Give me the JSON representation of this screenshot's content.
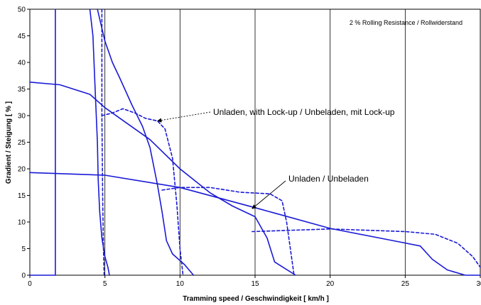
{
  "chart_data": {
    "type": "line",
    "xlabel": "Tramming speed / Geschwindigkeit   [ km/h ]",
    "ylabel": "Gradient / Steigung   [ % ]",
    "xlim": [
      0,
      30
    ],
    "ylim": [
      0,
      50
    ],
    "x_ticks": [
      "0",
      "5",
      "10",
      "15",
      "20",
      "25",
      "30"
    ],
    "y_ticks": [
      "0",
      "5",
      "10",
      "15",
      "20",
      "25",
      "30",
      "35",
      "40",
      "45",
      "50"
    ],
    "grid": "vertical",
    "note": "2 % Rolling Resistance / Rollwiderstand",
    "annotations": [
      {
        "text": "Unladen, with Lock-up / Unbeladen, mit Lock-up",
        "arrow_to": [
          8.5,
          29.0
        ]
      },
      {
        "text": "Unladen / Unbeladen",
        "arrow_to": [
          14.8,
          12.5
        ]
      }
    ],
    "series": [
      {
        "style": "solid",
        "points": [
          [
            0,
            0
          ],
          [
            1.7,
            0
          ],
          [
            1.7,
            50
          ]
        ]
      },
      {
        "style": "solid",
        "points": [
          [
            4.0,
            50
          ],
          [
            4.2,
            45
          ],
          [
            4.35,
            35
          ],
          [
            4.5,
            25
          ],
          [
            4.55,
            18
          ],
          [
            4.65,
            12
          ],
          [
            4.8,
            7
          ],
          [
            5.0,
            3.5
          ],
          [
            5.2,
            1.5
          ],
          [
            5.3,
            0
          ]
        ]
      },
      {
        "style": "solid",
        "points": [
          [
            4.5,
            50
          ],
          [
            5.0,
            44
          ],
          [
            5.5,
            40
          ],
          [
            6.0,
            37
          ],
          [
            6.8,
            32
          ],
          [
            7.5,
            28
          ],
          [
            8.0,
            24
          ],
          [
            8.5,
            17
          ],
          [
            8.8,
            12
          ],
          [
            9.1,
            6.5
          ],
          [
            9.5,
            4
          ],
          [
            10.3,
            2
          ],
          [
            10.9,
            0
          ]
        ]
      },
      {
        "style": "solid",
        "points": [
          [
            0,
            36.3
          ],
          [
            2,
            35.8
          ],
          [
            4,
            34
          ],
          [
            5,
            31.5
          ],
          [
            8,
            25.5
          ],
          [
            10,
            20
          ],
          [
            12,
            15.5
          ],
          [
            13.5,
            13
          ],
          [
            15,
            11
          ],
          [
            15.8,
            7
          ],
          [
            16.3,
            2.5
          ],
          [
            17.7,
            0
          ]
        ]
      },
      {
        "style": "solid",
        "points": [
          [
            0,
            19.3
          ],
          [
            5,
            18.8
          ],
          [
            10,
            16.5
          ],
          [
            15,
            12.7
          ],
          [
            20,
            8.8
          ],
          [
            24,
            6.6
          ],
          [
            26,
            5.5
          ],
          [
            26.8,
            3
          ],
          [
            27.8,
            1
          ],
          [
            29,
            0
          ],
          [
            30,
            0
          ]
        ]
      },
      {
        "style": "dashed",
        "points": [
          [
            4.8,
            50
          ],
          [
            4.8,
            30
          ],
          [
            4.85,
            15
          ],
          [
            4.9,
            5
          ],
          [
            4.95,
            0
          ]
        ]
      },
      {
        "style": "dashed",
        "points": [
          [
            4.8,
            30
          ],
          [
            5.5,
            30.5
          ],
          [
            6.2,
            31.3
          ],
          [
            7,
            30.5
          ],
          [
            7.7,
            29.5
          ],
          [
            8.5,
            29
          ],
          [
            9.0,
            27.5
          ],
          [
            9.5,
            22
          ],
          [
            9.8,
            13
          ],
          [
            10.0,
            5
          ],
          [
            10.2,
            0
          ]
        ]
      },
      {
        "style": "dashed",
        "points": [
          [
            8.8,
            16
          ],
          [
            10,
            16.5
          ],
          [
            12,
            16.5
          ],
          [
            14,
            15.6
          ],
          [
            16,
            15.3
          ],
          [
            16.8,
            14
          ],
          [
            17.1,
            10
          ],
          [
            17.4,
            4
          ],
          [
            17.6,
            0
          ]
        ]
      },
      {
        "style": "dashed",
        "points": [
          [
            14.8,
            8.2
          ],
          [
            20,
            8.7
          ],
          [
            25,
            8.2
          ],
          [
            27,
            7.7
          ],
          [
            28.5,
            6
          ],
          [
            29.5,
            3.5
          ],
          [
            30,
            1.5
          ]
        ]
      }
    ]
  }
}
